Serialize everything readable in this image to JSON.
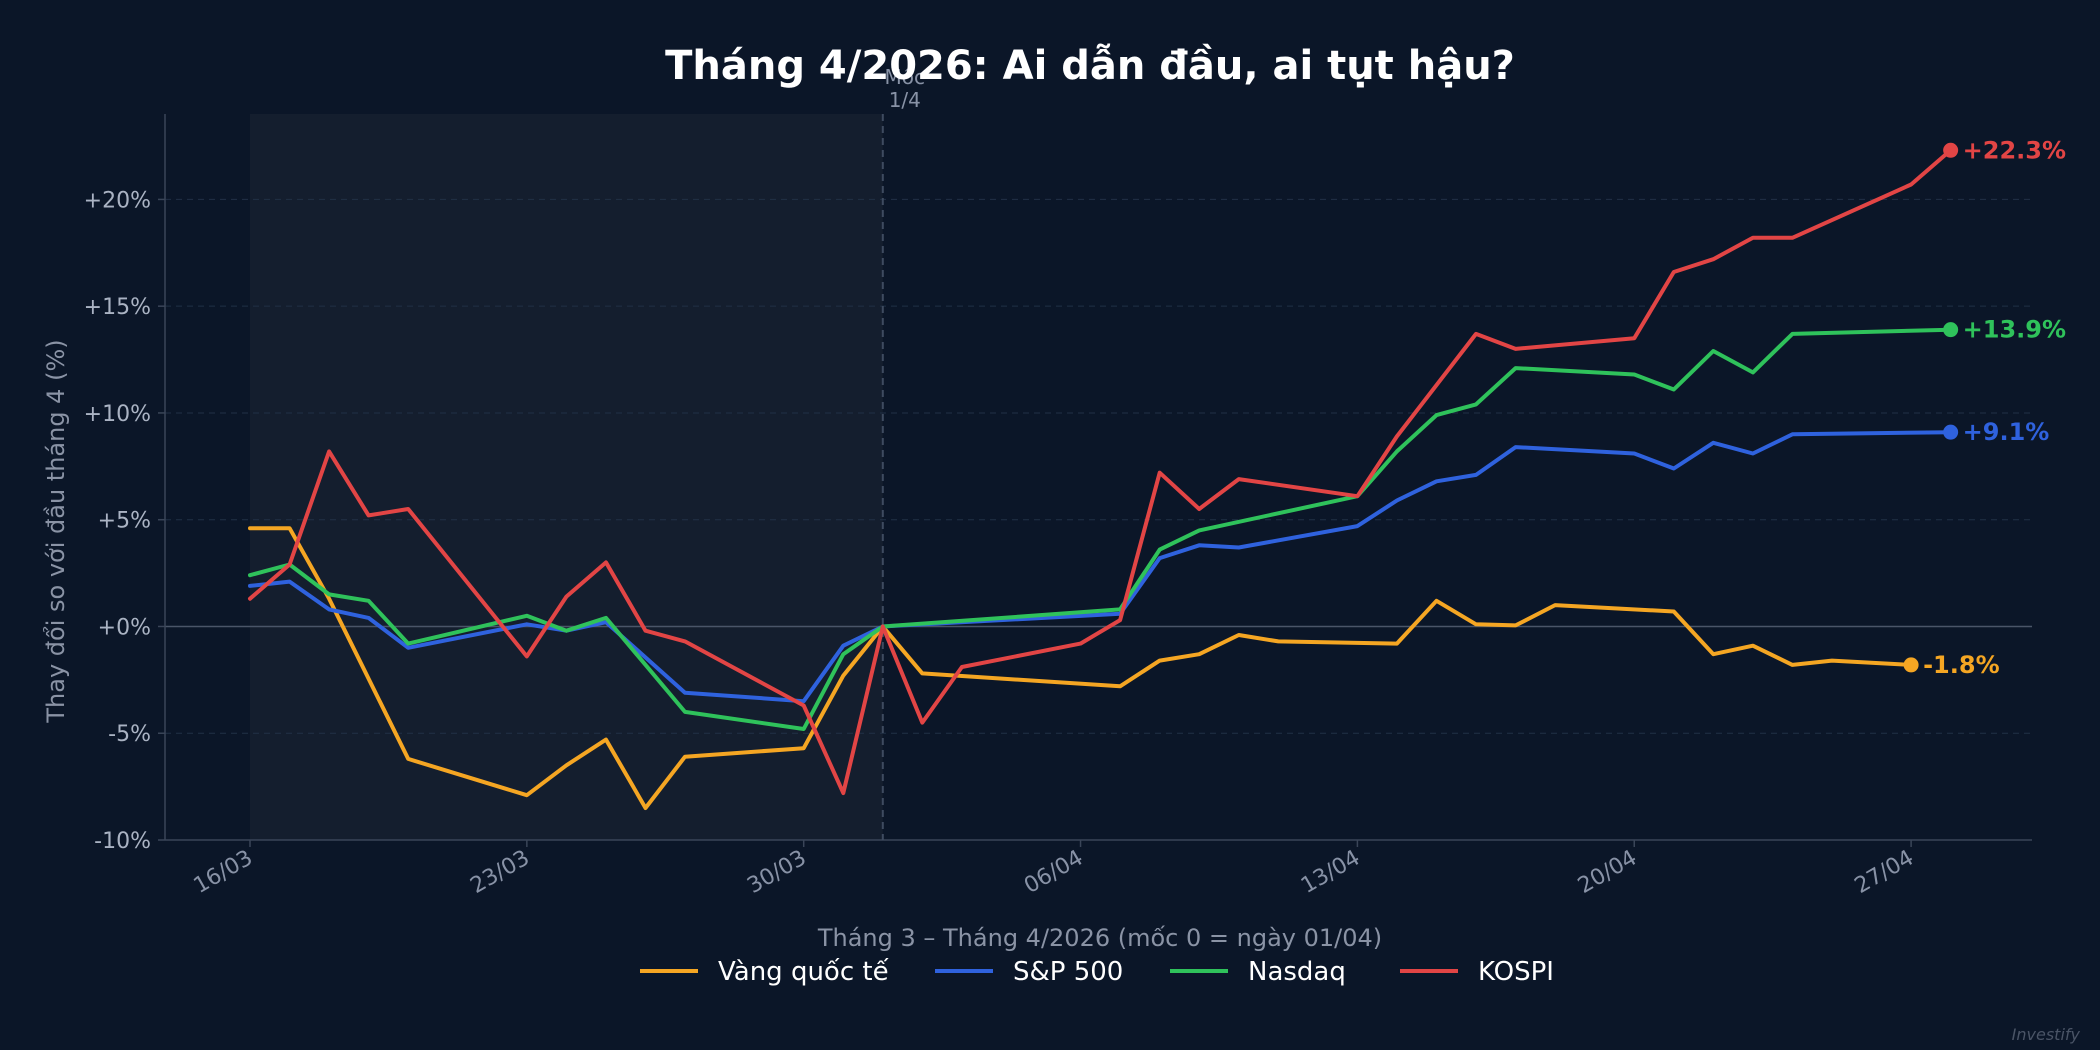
{
  "chart_data": {
    "type": "line",
    "title": "Tháng 4/2026: Ai dẫn đầu, ai tụt hậu?",
    "xlabel": "Tháng 3 – Tháng 4/2026   (mốc 0 = ngày 01/04)",
    "ylabel": "Thay đổi so với đầu tháng 4 (%)",
    "ylim": [
      -10,
      24
    ],
    "yticks": [
      -10,
      -5,
      0,
      5,
      10,
      15,
      20
    ],
    "ytick_labels": [
      "-10%",
      "-5%",
      "+0%",
      "+5%",
      "+10%",
      "+15%",
      "+20%"
    ],
    "xticks": [
      "2026-03-16",
      "2026-03-23",
      "2026-03-30",
      "2026-04-06",
      "2026-04-13",
      "2026-04-20",
      "2026-04-27"
    ],
    "xtick_labels": [
      "16/03",
      "23/03",
      "30/03",
      "06/04",
      "13/04",
      "20/04",
      "27/04"
    ],
    "xlim": [
      "2026-03-16",
      "2026-04-28"
    ],
    "shaded_region": [
      "2026-03-16",
      "2026-04-01"
    ],
    "reference_line": {
      "x": "2026-04-01",
      "label_line1": "Mốc",
      "label_line2": "1/4"
    },
    "grid": true,
    "legend_position": "bottom-center",
    "watermark": "Investify",
    "series": [
      {
        "name": "Vàng quốc tế",
        "color": "#f5a623",
        "end_label": "-1.8%",
        "points": [
          [
            "2026-03-16",
            4.6
          ],
          [
            "2026-03-17",
            4.6
          ],
          [
            "2026-03-18",
            1.3
          ],
          [
            "2026-03-20",
            -6.2
          ],
          [
            "2026-03-23",
            -7.9
          ],
          [
            "2026-03-24",
            -6.5
          ],
          [
            "2026-03-25",
            -5.3
          ],
          [
            "2026-03-26",
            -8.5
          ],
          [
            "2026-03-27",
            -6.1
          ],
          [
            "2026-03-30",
            -5.7
          ],
          [
            "2026-03-31",
            -2.3
          ],
          [
            "2026-04-01",
            0
          ],
          [
            "2026-04-02",
            -2.2
          ],
          [
            "2026-04-07",
            -2.8
          ],
          [
            "2026-04-08",
            -1.6
          ],
          [
            "2026-04-09",
            -1.3
          ],
          [
            "2026-04-10",
            -0.4
          ],
          [
            "2026-04-11",
            -0.7
          ],
          [
            "2026-04-14",
            -0.8
          ],
          [
            "2026-04-15",
            1.2
          ],
          [
            "2026-04-16",
            0.1
          ],
          [
            "2026-04-17",
            0.05
          ],
          [
            "2026-04-18",
            1.0
          ],
          [
            "2026-04-21",
            0.7
          ],
          [
            "2026-04-22",
            -1.3
          ],
          [
            "2026-04-23",
            -0.9
          ],
          [
            "2026-04-24",
            -1.8
          ],
          [
            "2026-04-25",
            -1.6
          ],
          [
            "2026-04-27",
            -1.8
          ]
        ]
      },
      {
        "name": "S&P 500",
        "color": "#2f62de",
        "end_label": "+9.1%",
        "points": [
          [
            "2026-03-16",
            1.9
          ],
          [
            "2026-03-17",
            2.1
          ],
          [
            "2026-03-18",
            0.8
          ],
          [
            "2026-03-19",
            0.4
          ],
          [
            "2026-03-20",
            -1.0
          ],
          [
            "2026-03-23",
            0.1
          ],
          [
            "2026-03-24",
            -0.2
          ],
          [
            "2026-03-25",
            0.2
          ],
          [
            "2026-03-27",
            -3.1
          ],
          [
            "2026-03-30",
            -3.5
          ],
          [
            "2026-03-31",
            -0.9
          ],
          [
            "2026-04-01",
            0
          ],
          [
            "2026-04-07",
            0.6
          ],
          [
            "2026-04-08",
            3.2
          ],
          [
            "2026-04-09",
            3.8
          ],
          [
            "2026-04-10",
            3.7
          ],
          [
            "2026-04-13",
            4.7
          ],
          [
            "2026-04-14",
            5.9
          ],
          [
            "2026-04-15",
            6.8
          ],
          [
            "2026-04-16",
            7.1
          ],
          [
            "2026-04-17",
            8.4
          ],
          [
            "2026-04-20",
            8.1
          ],
          [
            "2026-04-21",
            7.4
          ],
          [
            "2026-04-22",
            8.6
          ],
          [
            "2026-04-23",
            8.1
          ],
          [
            "2026-04-24",
            9.0
          ],
          [
            "2026-04-28",
            9.1
          ]
        ]
      },
      {
        "name": "Nasdaq",
        "color": "#2fc25b",
        "end_label": "+13.9%",
        "points": [
          [
            "2026-03-16",
            2.4
          ],
          [
            "2026-03-17",
            2.9
          ],
          [
            "2026-03-18",
            1.5
          ],
          [
            "2026-03-19",
            1.2
          ],
          [
            "2026-03-20",
            -0.8
          ],
          [
            "2026-03-23",
            0.5
          ],
          [
            "2026-03-24",
            -0.2
          ],
          [
            "2026-03-25",
            0.4
          ],
          [
            "2026-03-27",
            -4.0
          ],
          [
            "2026-03-30",
            -4.8
          ],
          [
            "2026-03-31",
            -1.3
          ],
          [
            "2026-04-01",
            0
          ],
          [
            "2026-04-07",
            0.8
          ],
          [
            "2026-04-08",
            3.6
          ],
          [
            "2026-04-09",
            4.5
          ],
          [
            "2026-04-13",
            6.1
          ],
          [
            "2026-04-14",
            8.2
          ],
          [
            "2026-04-15",
            9.9
          ],
          [
            "2026-04-16",
            10.4
          ],
          [
            "2026-04-17",
            12.1
          ],
          [
            "2026-04-20",
            11.8
          ],
          [
            "2026-04-21",
            11.1
          ],
          [
            "2026-04-22",
            12.9
          ],
          [
            "2026-04-23",
            11.9
          ],
          [
            "2026-04-24",
            13.7
          ],
          [
            "2026-04-28",
            13.9
          ]
        ]
      },
      {
        "name": "KOSPI",
        "color": "#e24545",
        "end_label": "+22.3%",
        "points": [
          [
            "2026-03-16",
            1.3
          ],
          [
            "2026-03-17",
            2.9
          ],
          [
            "2026-03-18",
            8.2
          ],
          [
            "2026-03-19",
            5.2
          ],
          [
            "2026-03-20",
            5.5
          ],
          [
            "2026-03-23",
            -1.4
          ],
          [
            "2026-03-24",
            1.4
          ],
          [
            "2026-03-25",
            3.0
          ],
          [
            "2026-03-26",
            -0.2
          ],
          [
            "2026-03-27",
            -0.7
          ],
          [
            "2026-03-30",
            -3.7
          ],
          [
            "2026-03-31",
            -7.8
          ],
          [
            "2026-04-01",
            0
          ],
          [
            "2026-04-02",
            -4.5
          ],
          [
            "2026-04-03",
            -1.9
          ],
          [
            "2026-04-06",
            -0.8
          ],
          [
            "2026-04-07",
            0.3
          ],
          [
            "2026-04-08",
            7.2
          ],
          [
            "2026-04-09",
            5.5
          ],
          [
            "2026-04-10",
            6.9
          ],
          [
            "2026-04-13",
            6.1
          ],
          [
            "2026-04-14",
            8.9
          ],
          [
            "2026-04-16",
            13.7
          ],
          [
            "2026-04-17",
            13.0
          ],
          [
            "2026-04-20",
            13.5
          ],
          [
            "2026-04-21",
            16.6
          ],
          [
            "2026-04-22",
            17.2
          ],
          [
            "2026-04-23",
            18.2
          ],
          [
            "2026-04-24",
            18.2
          ],
          [
            "2026-04-27",
            20.7
          ],
          [
            "2026-04-28",
            22.3
          ]
        ]
      }
    ]
  }
}
